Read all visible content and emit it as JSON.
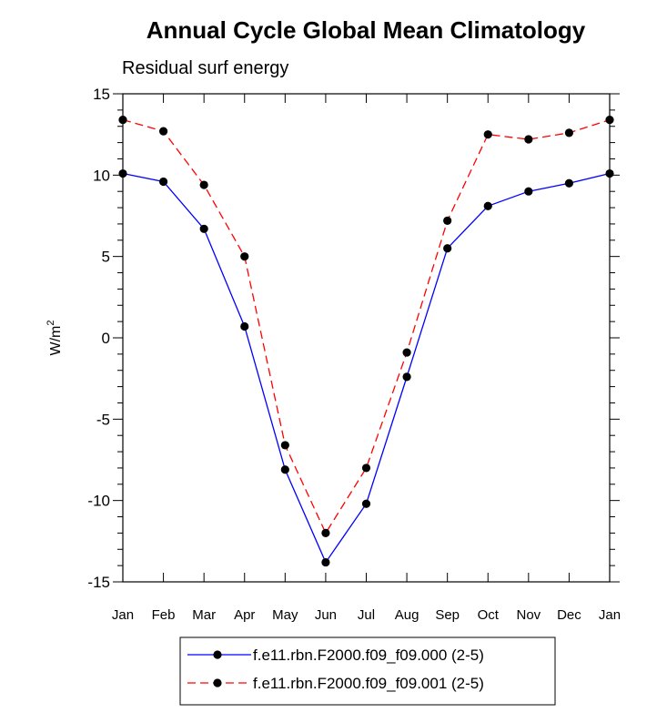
{
  "chart_data": {
    "type": "line",
    "title": "Annual Cycle Global Mean Climatology",
    "subtitle": "Residual surf energy",
    "ylabel": "W/m",
    "ylabel_sup": "2",
    "xlabel": "",
    "ylim": [
      -15,
      15
    ],
    "yticks": [
      15,
      10,
      5,
      0,
      -5,
      -10,
      -15
    ],
    "ytick_labels": [
      "15",
      "10",
      "5",
      "0",
      "-5",
      "-10",
      "-15"
    ],
    "categories": [
      "Jan",
      "Feb",
      "Mar",
      "Apr",
      "May",
      "Jun",
      "Jul",
      "Aug",
      "Sep",
      "Oct",
      "Nov",
      "Dec",
      "Jan"
    ],
    "grid": false,
    "legend_position": "bottom-center",
    "series": [
      {
        "name": "f.e11.rbn.F2000.f09_f09.000 (2-5)",
        "color": "#0000ff",
        "dash": "solid",
        "values": [
          10.1,
          9.6,
          6.7,
          0.7,
          -8.1,
          -13.8,
          -10.2,
          -2.4,
          5.5,
          8.1,
          9.0,
          9.5,
          10.1
        ]
      },
      {
        "name": "f.e11.rbn.F2000.f09_f09.001 (2-5)",
        "color": "#ff0000",
        "dash": "dashed",
        "values": [
          13.4,
          12.7,
          9.4,
          5.0,
          -6.6,
          -12.0,
          -8.0,
          -0.9,
          7.2,
          12.5,
          12.2,
          12.6,
          13.4
        ]
      }
    ]
  }
}
